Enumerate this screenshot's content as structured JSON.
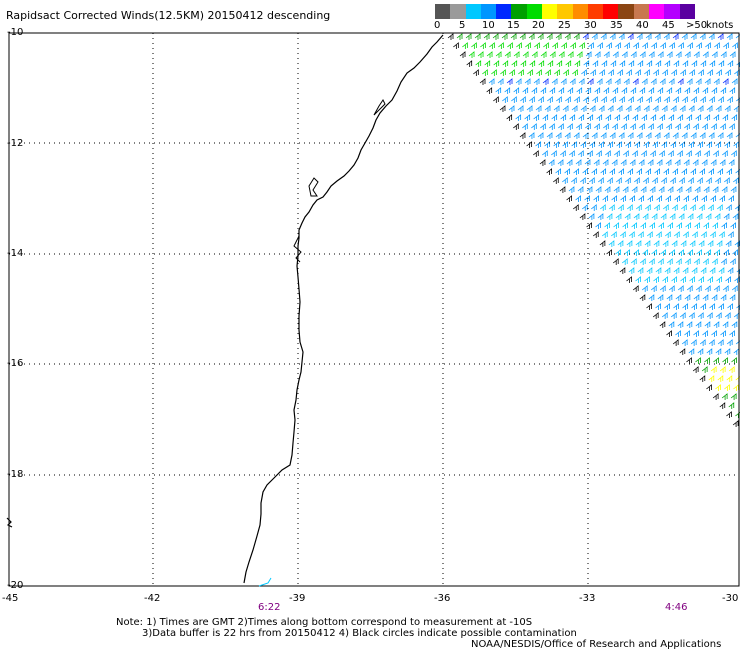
{
  "title": "Rapidsact Corrected Winds(12.5KM) 20150412 descending",
  "scale": {
    "colors": [
      "#555555",
      "#9a9a9a",
      "#00c8ff",
      "#0096ff",
      "#0028ff",
      "#00a000",
      "#00dc00",
      "#ffff00",
      "#ffc800",
      "#ff8c00",
      "#ff3c00",
      "#ff0000",
      "#8b4513",
      "#c87850",
      "#ff00ff",
      "#b400ff",
      "#5a00a0"
    ],
    "labels": [
      "0",
      "5",
      "10",
      "15",
      "20",
      "25",
      "30",
      "35",
      "40",
      "45",
      ">50"
    ],
    "units": "knots"
  },
  "axes": {
    "lat_labels": [
      "-10",
      "-12",
      "-14",
      "-16",
      "-18",
      "-20"
    ],
    "lon_labels": [
      "-45",
      "-42",
      "-39",
      "-36",
      "-33",
      "-30"
    ]
  },
  "times": [
    "6:22",
    "4:46"
  ],
  "notes": [
    "Note: 1) Times are GMT 2)Times along bottom correspond to measurement at -10S",
    "3)Data buffer is 22 hrs from 20150412 4) Black circles indicate possible contamination",
    "NOAA/NESDIS/Office of Research and Applications"
  ],
  "colors": {
    "grid": "#000000",
    "coast": "#000000",
    "time": "#800080"
  }
}
